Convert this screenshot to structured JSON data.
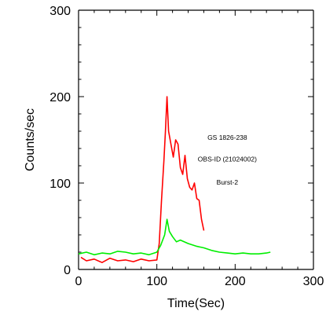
{
  "chart_data": {
    "type": "line",
    "xlabel": "Time(Sec)",
    "ylabel": "Counts/sec",
    "xlim": [
      0,
      300
    ],
    "ylim": [
      0,
      300
    ],
    "xticks": [
      0,
      100,
      200,
      300
    ],
    "yticks": [
      0,
      100,
      200,
      300
    ],
    "grid": false,
    "annotations": [
      {
        "text": "GS 1826-238",
        "x": 190,
        "y": 150
      },
      {
        "text": "OBS-ID (21024002)",
        "x": 190,
        "y": 125
      },
      {
        "text": "Burst-2",
        "x": 190,
        "y": 98
      }
    ],
    "series": [
      {
        "color": "#ff0000",
        "x": [
          3,
          10,
          20,
          30,
          40,
          50,
          60,
          70,
          80,
          90,
          100,
          103,
          106,
          109,
          111,
          113,
          115,
          118,
          121,
          124,
          127,
          130,
          133,
          136,
          139,
          142,
          145,
          148,
          151,
          154,
          157,
          160
        ],
        "y": [
          14,
          10,
          12,
          8,
          13,
          10,
          11,
          9,
          12,
          10,
          11,
          30,
          80,
          125,
          160,
          200,
          160,
          145,
          130,
          150,
          145,
          118,
          110,
          132,
          105,
          95,
          92,
          100,
          82,
          80,
          58,
          45
        ]
      },
      {
        "color": "#00ee00",
        "x": [
          0,
          10,
          20,
          30,
          40,
          50,
          60,
          70,
          80,
          90,
          100,
          105,
          110,
          113,
          116,
          120,
          125,
          130,
          140,
          150,
          160,
          170,
          180,
          190,
          200,
          210,
          220,
          230,
          240,
          245
        ],
        "y": [
          18,
          20,
          17,
          19,
          18,
          21,
          20,
          18,
          19,
          17,
          20,
          28,
          40,
          58,
          44,
          38,
          32,
          34,
          30,
          27,
          25,
          22,
          20,
          19,
          18,
          19,
          18,
          18,
          19,
          20
        ]
      }
    ]
  }
}
